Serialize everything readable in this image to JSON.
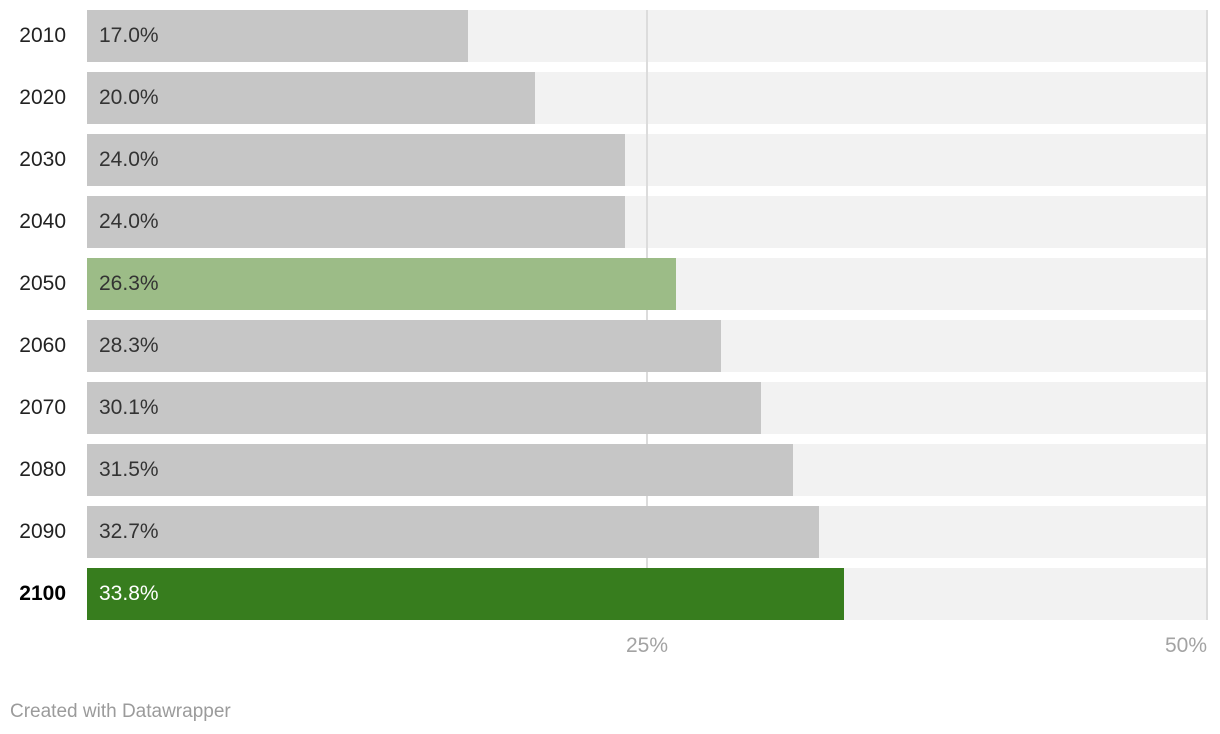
{
  "chart_data": {
    "type": "bar",
    "orientation": "horizontal",
    "title": "",
    "xlabel": "",
    "ylabel": "",
    "categories": [
      "2010",
      "2020",
      "2030",
      "2040",
      "2050",
      "2060",
      "2070",
      "2080",
      "2090",
      "2100"
    ],
    "values": [
      17.0,
      20.0,
      24.0,
      24.0,
      26.3,
      28.3,
      30.1,
      31.5,
      32.7,
      33.8
    ],
    "value_labels": [
      "17.0%",
      "20.0%",
      "24.0%",
      "24.0%",
      "26.3%",
      "28.3%",
      "30.1%",
      "31.5%",
      "32.7%",
      "33.8%"
    ],
    "bar_colors": [
      "#c6c6c6",
      "#c6c6c6",
      "#c6c6c6",
      "#c6c6c6",
      "#9cbc87",
      "#c6c6c6",
      "#c6c6c6",
      "#c6c6c6",
      "#c6c6c6",
      "#377d1e"
    ],
    "value_label_colors": [
      "#333333",
      "#333333",
      "#333333",
      "#333333",
      "#333333",
      "#333333",
      "#333333",
      "#333333",
      "#333333",
      "#ffffff"
    ],
    "bold_categories": [
      "2100"
    ],
    "xlim": [
      0,
      50
    ],
    "x_ticks": [
      {
        "value": 25,
        "label": "25%"
      },
      {
        "value": 50,
        "label": "50%"
      }
    ],
    "grid": "vertical gridlines at ticks, behind bars",
    "legend": "none"
  },
  "colors": {
    "background": "#ffffff",
    "bar_default": "#c6c6c6",
    "bar_highlight_light": "#9cbc87",
    "bar_highlight_dark": "#377d1e",
    "track": "#f2f2f2",
    "gridline": "#dcdcdc",
    "category_label": "#222222",
    "category_label_bold": "#000000",
    "value_label": "#333333",
    "value_label_on_dark": "#ffffff",
    "axis_tick_label": "#a3a3a3",
    "credit_text": "#9b9b9b"
  },
  "footer": {
    "credit": "Created with Datawrapper"
  }
}
